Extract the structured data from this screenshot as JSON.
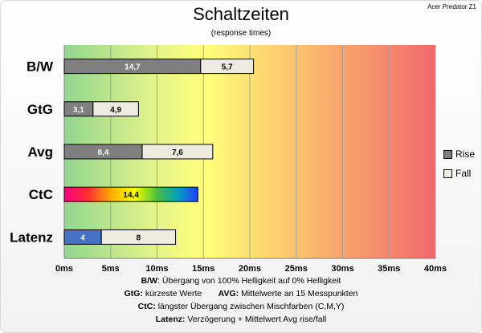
{
  "title": "Schaltzeiten",
  "subtitle": "(response times)",
  "corner_label": "Acer Predator Z1",
  "chart_data": {
    "type": "bar",
    "orientation": "horizontal",
    "stacked": true,
    "categories": [
      "B/W",
      "GtG",
      "Avg",
      "CtC",
      "Latenz"
    ],
    "series": [
      {
        "name": "Rise",
        "values": [
          14.7,
          3.1,
          8.4,
          null,
          null
        ],
        "color": "#7f7f7f"
      },
      {
        "name": "Fall",
        "values": [
          5.7,
          4.9,
          7.6,
          null,
          null
        ],
        "color": "#eeece1"
      }
    ],
    "single_bars": [
      {
        "category": "CtC",
        "value": 14.4,
        "label": "14,4",
        "fill": "rainbow"
      },
      {
        "category": "Latenz",
        "segments": [
          {
            "value": 4,
            "label": "4",
            "color": "#4472c4"
          },
          {
            "value": 8,
            "label": "8",
            "color": "#eeece1"
          }
        ]
      }
    ],
    "value_labels": {
      "B/W": [
        "14,7",
        "5,7"
      ],
      "GtG": [
        "3,1",
        "4,9"
      ],
      "Avg": [
        "8,4",
        "7,6"
      ]
    },
    "xlim": [
      0,
      40
    ],
    "xticks": [
      "0ms",
      "5ms",
      "10ms",
      "15ms",
      "20ms",
      "25ms",
      "30ms",
      "35ms",
      "40ms"
    ],
    "xtick_values": [
      0,
      5,
      10,
      15,
      20,
      25,
      30,
      35,
      40
    ],
    "background": "green-yellow-red gradient",
    "grid": true,
    "legend_position": "right"
  },
  "notes": [
    {
      "bold": "B/W",
      "text": ":  Übergang von 100% Helligkeit auf 0% Helligkeit"
    },
    {
      "bold": "GtG:",
      "text": " kürzeste  Werte",
      "bold2": "AVG:",
      "text2": " Mittelwerte  an 15 Messpunkten"
    },
    {
      "bold": "CtC:",
      "text": " längster Übergang  zwischen Mischfarben (C,M,Y)"
    },
    {
      "bold": "Latenz:",
      "text": " Verzögerung  + Mittelwert Avg rise/fall"
    }
  ]
}
